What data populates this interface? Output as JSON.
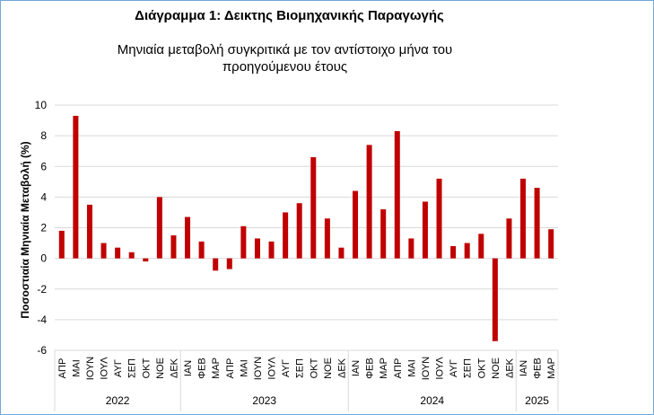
{
  "chart_data": {
    "type": "bar",
    "title": "Διάγραμμα 1: Δεικτης Βιομηχανικής Παραγωγής",
    "subtitle_lines": [
      "Μηνιαία μεταβολή συγκριτικά με τον αντίστοιχο μήνα του",
      "προηγούμενου έτους"
    ],
    "ylabel": "Ποσοστιαία Μηνιαία Μεταβολή (%)",
    "ylim": [
      -6,
      10
    ],
    "yticks": [
      -6,
      -4,
      -2,
      0,
      2,
      4,
      6,
      8,
      10
    ],
    "grid": true,
    "bar_color": "#c00000",
    "categories": [
      "ΑΠΡ",
      "ΜΑΙ",
      "ΙΟΥΝ",
      "ΙΟΥΛ",
      "ΑΥΓ",
      "ΣΕΠ",
      "ΟΚΤ",
      "ΝΟΕ",
      "ΔΕΚ",
      "ΙΑΝ",
      "ΦΕΒ",
      "ΜΑΡ",
      "ΑΠΡ",
      "ΜΑΙ",
      "ΙΟΥΝ",
      "ΙΟΥΛ",
      "ΑΥΓ",
      "ΣΕΠ",
      "ΟΚΤ",
      "ΝΟΕ",
      "ΔΕΚ",
      "ΙΑΝ",
      "ΦΕΒ",
      "ΜΑΡ",
      "ΑΠΡ",
      "ΜΑΙ",
      "ΙΟΥΝ",
      "ΙΟΥΛ",
      "ΑΥΓ",
      "ΣΕΠ",
      "ΟΚΤ",
      "ΝΟΕ",
      "ΔΕΚ",
      "ΙΑΝ",
      "ΦΕΒ",
      "ΜΑΡ"
    ],
    "values": [
      1.8,
      9.3,
      3.5,
      1.0,
      0.7,
      0.4,
      -0.2,
      4.0,
      1.5,
      2.7,
      1.1,
      -0.8,
      -0.7,
      2.1,
      1.3,
      1.1,
      3.0,
      3.6,
      6.6,
      2.6,
      0.7,
      4.4,
      7.4,
      3.2,
      8.3,
      1.3,
      3.7,
      5.2,
      0.8,
      1.0,
      1.6,
      -5.4,
      2.6,
      5.2,
      4.6,
      1.9
    ],
    "groups": [
      {
        "label": "2022",
        "count": 9
      },
      {
        "label": "2023",
        "count": 12
      },
      {
        "label": "2024",
        "count": 12
      },
      {
        "label": "2025",
        "count": 3
      }
    ]
  }
}
